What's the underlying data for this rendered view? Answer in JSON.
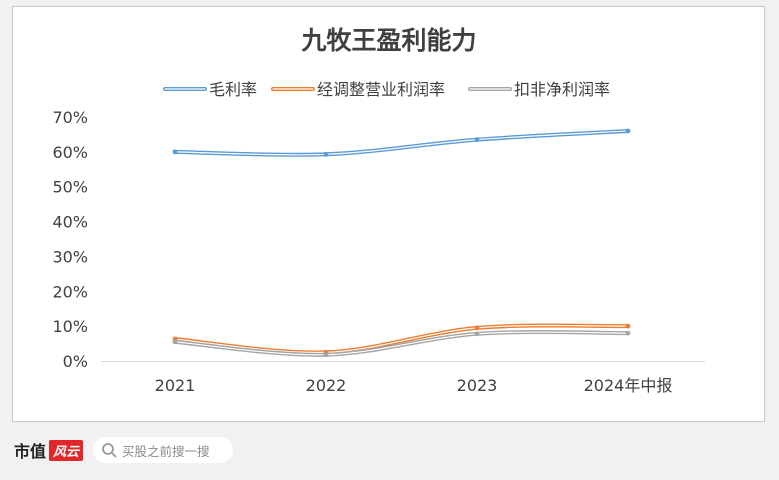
{
  "chart_data": {
    "type": "line",
    "title": "九牧王盈利能力",
    "categories": [
      "2021",
      "2022",
      "2023",
      "2024年中报"
    ],
    "series": [
      {
        "name": "毛利率",
        "values": [
          60.0,
          59.3,
          63.5,
          66.0
        ],
        "color": "#5b9bd5"
      },
      {
        "name": "经调整营业利润率",
        "values": [
          6.3,
          2.5,
          9.5,
          10.0
        ],
        "color": "#ed7d31"
      },
      {
        "name": "扣非净利润率",
        "values": [
          5.5,
          1.8,
          7.8,
          8.0
        ],
        "color": "#a5a5a5"
      }
    ],
    "yticks": [
      "0%",
      "10%",
      "20%",
      "30%",
      "40%",
      "50%",
      "60%",
      "70%"
    ],
    "ylim": [
      0,
      70
    ],
    "legend": "top",
    "grid": false
  },
  "footer": {
    "brand_text": "市值",
    "brand_logo": "风云",
    "search_placeholder": "买股之前搜一搜",
    "search_icon": "search-icon"
  }
}
